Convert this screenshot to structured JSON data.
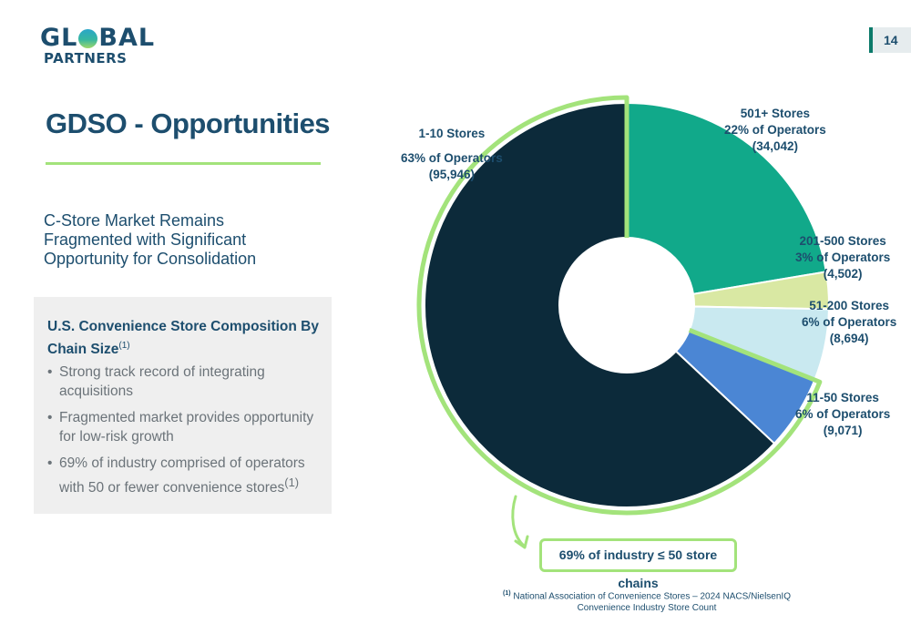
{
  "logo": {
    "line1_a": "GL",
    "line1_b": "BAL",
    "line2": "PARTNERS"
  },
  "page_number": "14",
  "title": "GDSO - Opportunities",
  "subtitle": "C-Store Market Remains Fragmented with Significant Opportunity for Consolidation",
  "box": {
    "title": "U.S. Convenience Store Composition By Chain Size",
    "title_sup": "(1)",
    "bullets": [
      {
        "text": "Strong track record of integrating acquisitions",
        "sup": ""
      },
      {
        "text": "Fragmented market provides opportunity for low-risk growth",
        "sup": ""
      },
      {
        "text": "69% of industry comprised of operators with 50 or fewer convenience stores",
        "sup": "(1)"
      }
    ],
    "bullet_char": "•"
  },
  "chart_data": {
    "type": "pie",
    "style": "donut",
    "series": [
      {
        "name": "501+ Stores",
        "label_pct": "22% of Operators",
        "label_count": "(34,042)",
        "value": 34042,
        "color": "#11a98a"
      },
      {
        "name": "201-500 Stores",
        "label_pct": "3% of Operators",
        "label_count": "(4,502)",
        "value": 4502,
        "color": "#d9e8a3"
      },
      {
        "name": "51-200 Stores",
        "label_pct": "6% of Operators",
        "label_count": "(8,694)",
        "value": 8694,
        "color": "#c9e9f0"
      },
      {
        "name": "11-50 Stores",
        "label_pct": "6% of Operators",
        "label_count": "(9,071)",
        "value": 9071,
        "color": "#4b86d4"
      },
      {
        "name": "1-10 Stores",
        "label_pct": "63% of Operators",
        "label_count": "(95,946)",
        "value": 95946,
        "color": "#0c2a3a"
      }
    ],
    "highlight": "11-50 Stores, 1-10 Stores",
    "highlight_color": "#a3e37b"
  },
  "callout": "69% of industry ≤ 50 store chains",
  "footnote": {
    "sup": "(1)",
    "line1": "National Association of Convenience Stores – 2024 NACS/NielsenIQ",
    "line2": "Convenience Industry Store Count"
  }
}
